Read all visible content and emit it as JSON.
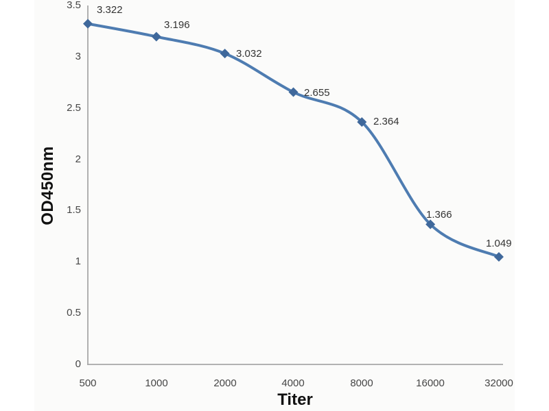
{
  "chart_data": {
    "type": "line",
    "title": "",
    "categories": [
      "500",
      "1000",
      "2000",
      "4000",
      "8000",
      "16000",
      "32000"
    ],
    "values": [
      3.322,
      3.196,
      3.032,
      2.655,
      2.364,
      1.366,
      1.049
    ],
    "point_labels": [
      "3.322",
      "3.196",
      "3.032",
      "2.655",
      "2.364",
      "1.366",
      "1.049"
    ],
    "xlabel": "Titer",
    "ylabel": "OD450nm",
    "y_ticks": [
      "3.5",
      "3",
      "2.5",
      "2",
      "1.5",
      "1",
      "0.5",
      "0"
    ],
    "y_tick_values": [
      3.5,
      3,
      2.5,
      2,
      1.5,
      1,
      0.5,
      0
    ],
    "ylim": [
      0,
      3.5
    ],
    "x_scale": "log2-categorical",
    "grid": "off",
    "legend": "none",
    "line_style": "smooth",
    "marker": "diamond",
    "colors": {
      "line": "#4e7cb1",
      "marker": "#3f689b",
      "axis": "#a8a8a8",
      "tick_text": "#454545",
      "data_label_text": "#333333",
      "axis_title_text": "#111111",
      "panel_background": "#fbfbfa"
    }
  }
}
